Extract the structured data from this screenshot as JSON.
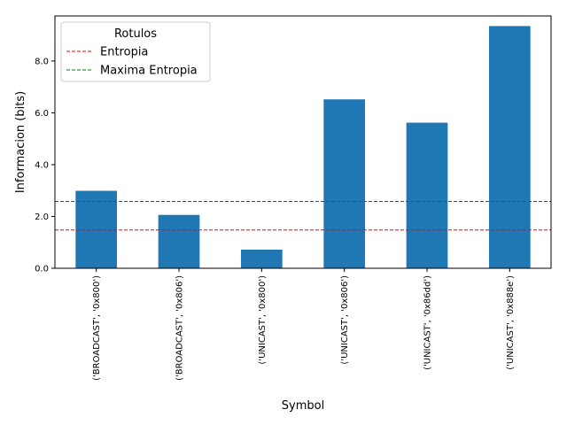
{
  "chart_data": {
    "type": "bar",
    "categories": [
      "('BROADCAST', '0x800')",
      "('BROADCAST', '0x806')",
      "('UNICAST', '0x800')",
      "('UNICAST', '0x806')",
      "('UNICAST', '0x86dd')",
      "('UNICAST', '0x888e')"
    ],
    "values": [
      2.99,
      2.06,
      0.72,
      6.52,
      5.62,
      9.35
    ],
    "xlabel": "Symbol",
    "ylabel": "Informacion (bits)",
    "ylim": [
      0,
      9.74
    ],
    "yticks": [
      0.0,
      2.0,
      4.0,
      6.0,
      8.0
    ],
    "ytick_labels": [
      "0.0",
      "2.0",
      "4.0",
      "6.0",
      "8.0"
    ],
    "bar_color": "#1f77b4",
    "hlines": [
      {
        "name": "Entropia",
        "value": 1.48,
        "color": "#ff0000",
        "style": "dashed"
      },
      {
        "name": "Maxima Entropia",
        "value": 2.58,
        "color": "#008000",
        "style": "dashed"
      }
    ],
    "legend": {
      "title": "Rotulos",
      "placement": "top-left",
      "entries": [
        "Entropia",
        "Maxima Entropia"
      ]
    },
    "grid": false
  }
}
